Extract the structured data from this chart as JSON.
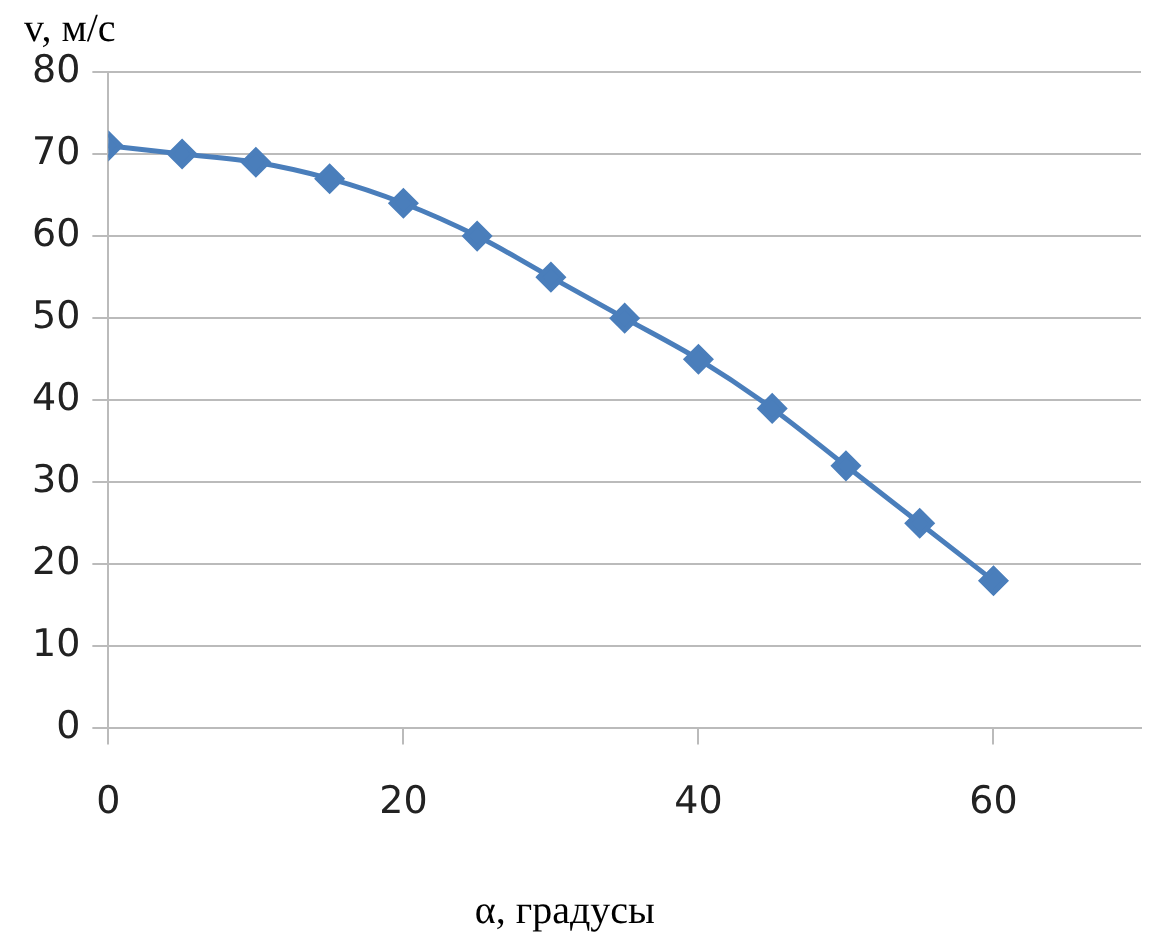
{
  "chart_data": {
    "type": "line",
    "xlabel": "α, градусы",
    "ylabel": "v, м/с",
    "x": [
      0,
      5,
      10,
      15,
      20,
      25,
      30,
      35,
      40,
      45,
      50,
      55,
      60
    ],
    "series": [
      {
        "color": "#4a7ebb",
        "values": [
          71,
          70,
          69,
          67,
          64,
          60,
          55,
          50,
          45,
          39,
          32,
          25,
          18
        ]
      }
    ],
    "xlim": [
      0,
      70
    ],
    "xticks": [
      0,
      20,
      40,
      60
    ],
    "ylim": [
      0,
      80
    ],
    "yticks": [
      0,
      10,
      20,
      30,
      40,
      50,
      60,
      70,
      80
    ],
    "grid": "y",
    "legend": false,
    "marker": "diamond",
    "line_style": "solid"
  }
}
